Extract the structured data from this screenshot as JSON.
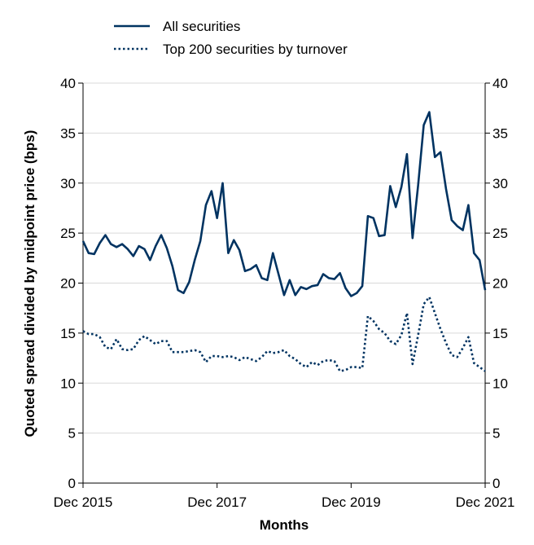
{
  "chart_data": {
    "type": "line",
    "y_label": "Quoted spread divided by midpoint price (bps)",
    "x_label": "Months",
    "categories": [
      "Dec 2015",
      null,
      null,
      null,
      null,
      null,
      null,
      null,
      null,
      null,
      null,
      null,
      null,
      null,
      null,
      null,
      null,
      null,
      null,
      null,
      null,
      null,
      null,
      null,
      "Dec 2017",
      null,
      null,
      null,
      null,
      null,
      null,
      null,
      null,
      null,
      null,
      null,
      null,
      null,
      null,
      null,
      null,
      null,
      null,
      null,
      null,
      null,
      null,
      null,
      "Dec 2019",
      null,
      null,
      null,
      null,
      null,
      null,
      null,
      null,
      null,
      null,
      null,
      null,
      null,
      null,
      null,
      null,
      null,
      null,
      null,
      null,
      null,
      null,
      null,
      "Dec 2021"
    ],
    "series": [
      {
        "name": "All securities",
        "color": "#003361",
        "style": "solid",
        "values": [
          24.2,
          23.0,
          22.9,
          24.0,
          24.8,
          23.9,
          23.6,
          23.9,
          23.4,
          22.7,
          23.7,
          23.4,
          22.3,
          23.7,
          24.8,
          23.5,
          21.7,
          19.3,
          19.0,
          20.1,
          22.3,
          24.2,
          27.8,
          29.2,
          26.5,
          30.0,
          23.0,
          24.3,
          23.3,
          21.2,
          21.4,
          21.8,
          20.5,
          20.3,
          23.0,
          20.9,
          18.8,
          20.3,
          18.8,
          19.6,
          19.4,
          19.7,
          19.8,
          20.9,
          20.5,
          20.4,
          21.0,
          19.5,
          18.7,
          19.0,
          19.7,
          26.7,
          26.5,
          24.7,
          24.8,
          29.7,
          27.6,
          29.6,
          32.9,
          24.5,
          29.8,
          35.8,
          37.1,
          32.6,
          33.1,
          29.4,
          26.3,
          25.7,
          25.3,
          27.8,
          23.0,
          22.3,
          19.3
        ]
      },
      {
        "name": "Top 200 securities by turnover",
        "color": "#003361",
        "style": "dotted",
        "values": [
          15.2,
          14.9,
          14.9,
          14.6,
          13.6,
          13.4,
          14.4,
          13.4,
          13.3,
          13.4,
          14.3,
          14.7,
          14.3,
          13.9,
          14.2,
          14.2,
          13.1,
          13.1,
          13.1,
          13.2,
          13.3,
          13.1,
          12.1,
          12.7,
          12.7,
          12.6,
          12.7,
          12.6,
          12.3,
          12.6,
          12.4,
          12.2,
          12.6,
          13.2,
          13.0,
          13.1,
          13.3,
          12.7,
          12.4,
          11.9,
          11.6,
          12.1,
          11.8,
          12.2,
          12.3,
          12.2,
          11.2,
          11.3,
          11.6,
          11.6,
          11.5,
          16.7,
          16.2,
          15.4,
          15.0,
          14.2,
          13.9,
          14.8,
          17.0,
          11.9,
          14.8,
          17.9,
          18.6,
          17.0,
          15.4,
          14.0,
          12.8,
          12.6,
          13.5,
          14.6,
          12.0,
          11.6,
          11.2
        ]
      }
    ],
    "ylim": [
      0,
      40
    ],
    "yticks": [
      0,
      5,
      10,
      15,
      20,
      25,
      30,
      35,
      40
    ],
    "y2lim": [
      0,
      40
    ],
    "y2ticks": [
      0,
      5,
      10,
      15,
      20,
      25,
      30,
      35,
      40
    ],
    "grid": true,
    "legend": "upper center outside"
  }
}
